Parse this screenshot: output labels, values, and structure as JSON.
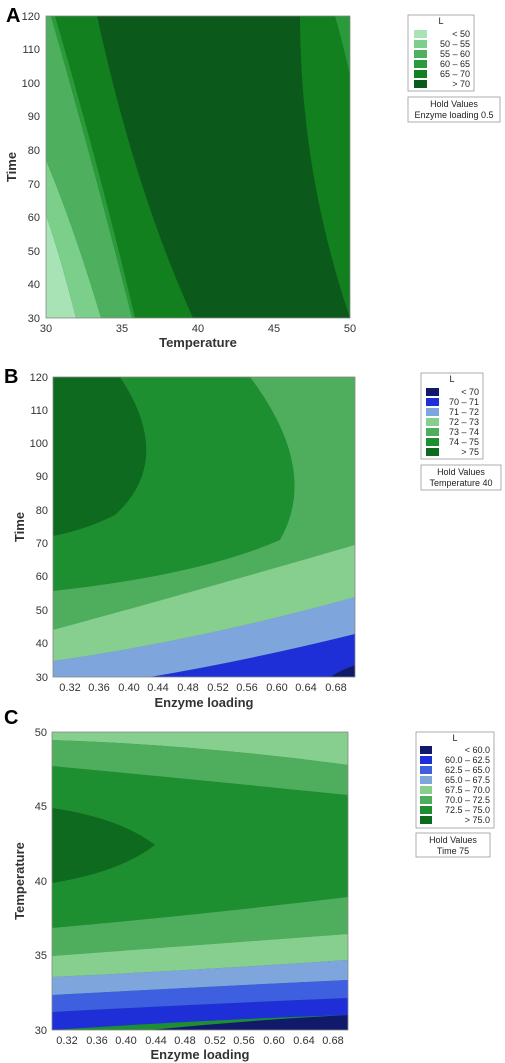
{
  "chart_data": [
    {
      "panel": "A",
      "type": "contour",
      "xlabel": "Temperature",
      "ylabel": "Time",
      "xlim": [
        30,
        50
      ],
      "ylim": [
        30,
        120
      ],
      "xticks": [
        30,
        35,
        40,
        45,
        50
      ],
      "yticks": [
        30,
        40,
        50,
        60,
        70,
        80,
        90,
        100,
        110,
        120
      ],
      "legend": {
        "title": "L",
        "entries": [
          {
            "label": "< 50",
            "color": "#a7e3b4"
          },
          {
            "label": "50 – 55",
            "color": "#7ccf8a"
          },
          {
            "label": "55 – 60",
            "color": "#4eb05f"
          },
          {
            "label": "60 – 65",
            "color": "#2a9a3a"
          },
          {
            "label": "65 – 70",
            "color": "#12801f"
          },
          {
            "label": "> 70",
            "color": "#0b5a1b"
          }
        ]
      },
      "hold_values": {
        "title": "Hold Values",
        "text": "Enzyme loading  0.5"
      }
    },
    {
      "panel": "B",
      "type": "contour",
      "xlabel": "Enzyme loading",
      "ylabel": "Time",
      "xlim": [
        0.3,
        0.7
      ],
      "ylim": [
        30,
        120
      ],
      "xticks": [
        "0.32",
        "0.36",
        "0.40",
        "0.44",
        "0.48",
        "0.52",
        "0.56",
        "0.60",
        "0.64",
        "0.68"
      ],
      "yticks": [
        30,
        40,
        50,
        60,
        70,
        80,
        90,
        100,
        110,
        120
      ],
      "legend": {
        "title": "L",
        "entries": [
          {
            "label": "< 70",
            "color": "#111a6a"
          },
          {
            "label": "70 – 71",
            "color": "#1f2fd8"
          },
          {
            "label": "71 – 72",
            "color": "#7ea6dc"
          },
          {
            "label": "72 – 73",
            "color": "#86cf8e"
          },
          {
            "label": "73 – 74",
            "color": "#4fae5e"
          },
          {
            "label": "74 – 75",
            "color": "#1e8f31"
          },
          {
            "label": "> 75",
            "color": "#0e6a1f"
          }
        ]
      },
      "hold_values": {
        "title": "Hold Values",
        "text": "Temperature  40"
      }
    },
    {
      "panel": "C",
      "type": "contour",
      "xlabel": "Enzyme loading",
      "ylabel": "Temperature",
      "xlim": [
        0.3,
        0.7
      ],
      "ylim": [
        30,
        50
      ],
      "xticks": [
        "0.32",
        "0.36",
        "0.40",
        "0.44",
        "0.48",
        "0.52",
        "0.56",
        "0.60",
        "0.64",
        "0.68"
      ],
      "yticks": [
        30,
        35,
        40,
        45,
        50
      ],
      "legend": {
        "title": "L",
        "entries": [
          {
            "label": "< 60.0",
            "color": "#111a6a"
          },
          {
            "label": "60.0 – 62.5",
            "color": "#1f2fd8"
          },
          {
            "label": "62.5 – 65.0",
            "color": "#3d5fe0"
          },
          {
            "label": "65.0 – 67.5",
            "color": "#7ea6dc"
          },
          {
            "label": "67.5 – 70.0",
            "color": "#86cf8e"
          },
          {
            "label": "70.0 – 72.5",
            "color": "#4fae5e"
          },
          {
            "label": "72.5 – 75.0",
            "color": "#1e8f31"
          },
          {
            "label": "> 75.0",
            "color": "#0e6a1f"
          }
        ]
      },
      "hold_values": {
        "title": "Hold Values",
        "text": "Time  75"
      }
    }
  ]
}
